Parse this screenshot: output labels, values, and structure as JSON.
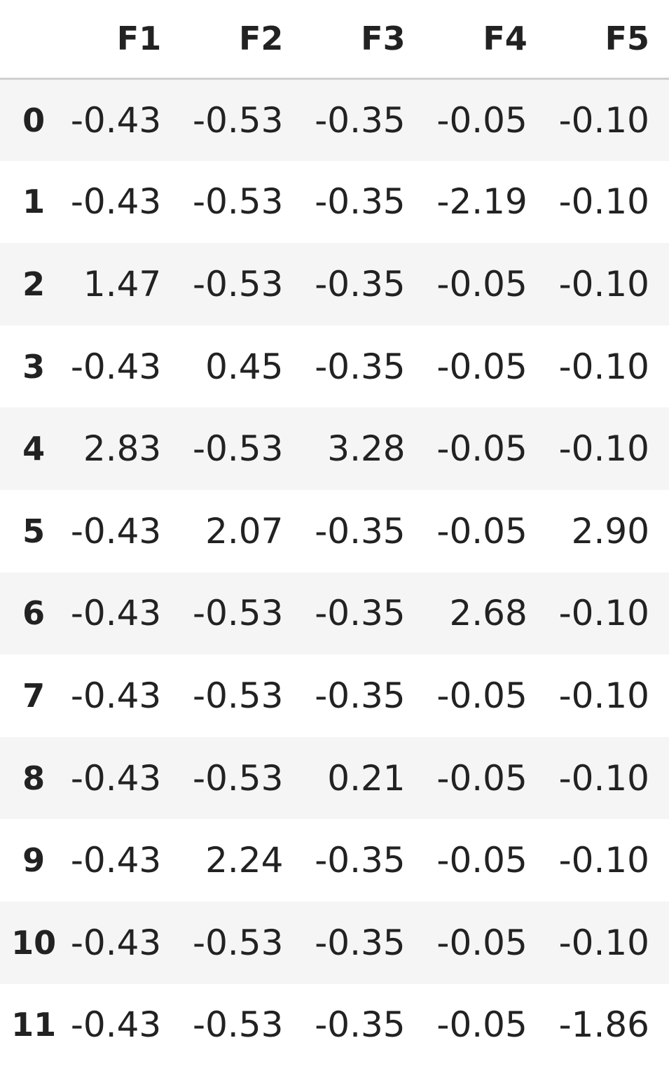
{
  "table": {
    "columns": [
      "F1",
      "F2",
      "F3",
      "F4",
      "F5"
    ],
    "rows": [
      {
        "index": "0",
        "values": [
          "-0.43",
          "-0.53",
          "-0.35",
          "-0.05",
          "-0.10"
        ]
      },
      {
        "index": "1",
        "values": [
          "-0.43",
          "-0.53",
          "-0.35",
          "-2.19",
          "-0.10"
        ]
      },
      {
        "index": "2",
        "values": [
          "1.47",
          "-0.53",
          "-0.35",
          "-0.05",
          "-0.10"
        ]
      },
      {
        "index": "3",
        "values": [
          "-0.43",
          "0.45",
          "-0.35",
          "-0.05",
          "-0.10"
        ]
      },
      {
        "index": "4",
        "values": [
          "2.83",
          "-0.53",
          "3.28",
          "-0.05",
          "-0.10"
        ]
      },
      {
        "index": "5",
        "values": [
          "-0.43",
          "2.07",
          "-0.35",
          "-0.05",
          "2.90"
        ]
      },
      {
        "index": "6",
        "values": [
          "-0.43",
          "-0.53",
          "-0.35",
          "2.68",
          "-0.10"
        ]
      },
      {
        "index": "7",
        "values": [
          "-0.43",
          "-0.53",
          "-0.35",
          "-0.05",
          "-0.10"
        ]
      },
      {
        "index": "8",
        "values": [
          "-0.43",
          "-0.53",
          "0.21",
          "-0.05",
          "-0.10"
        ]
      },
      {
        "index": "9",
        "values": [
          "-0.43",
          "2.24",
          "-0.35",
          "-0.05",
          "-0.10"
        ]
      },
      {
        "index": "10",
        "values": [
          "-0.43",
          "-0.53",
          "-0.35",
          "-0.05",
          "-0.10"
        ]
      },
      {
        "index": "11",
        "values": [
          "-0.43",
          "-0.53",
          "-0.35",
          "-0.05",
          "-1.86"
        ]
      }
    ]
  }
}
